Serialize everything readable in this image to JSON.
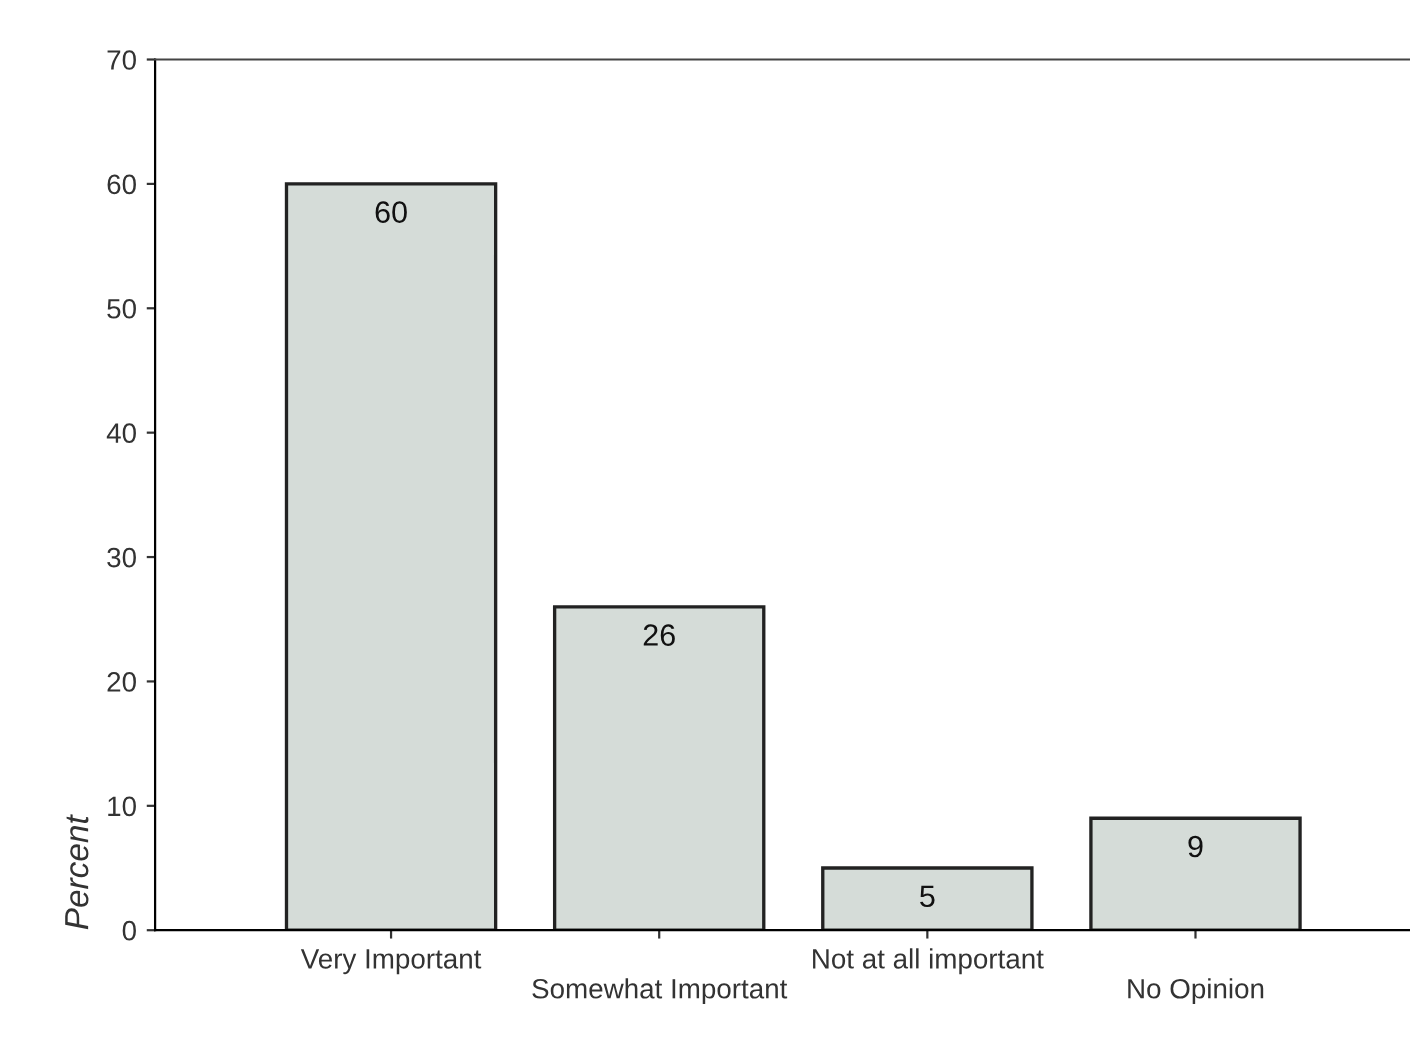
{
  "chart_data": {
    "type": "bar",
    "ylabel": "Percent",
    "categories": [
      "Very Important",
      "Somewhat Important",
      "Not at all important",
      "No Opinion"
    ],
    "values": [
      60,
      26,
      5,
      9
    ],
    "color": "#d5dcd8",
    "ylim": [
      0,
      70
    ],
    "yticks": [
      0,
      10,
      20,
      30,
      40,
      50,
      60,
      70
    ],
    "data_labels": true,
    "grid": false,
    "legend": false
  }
}
